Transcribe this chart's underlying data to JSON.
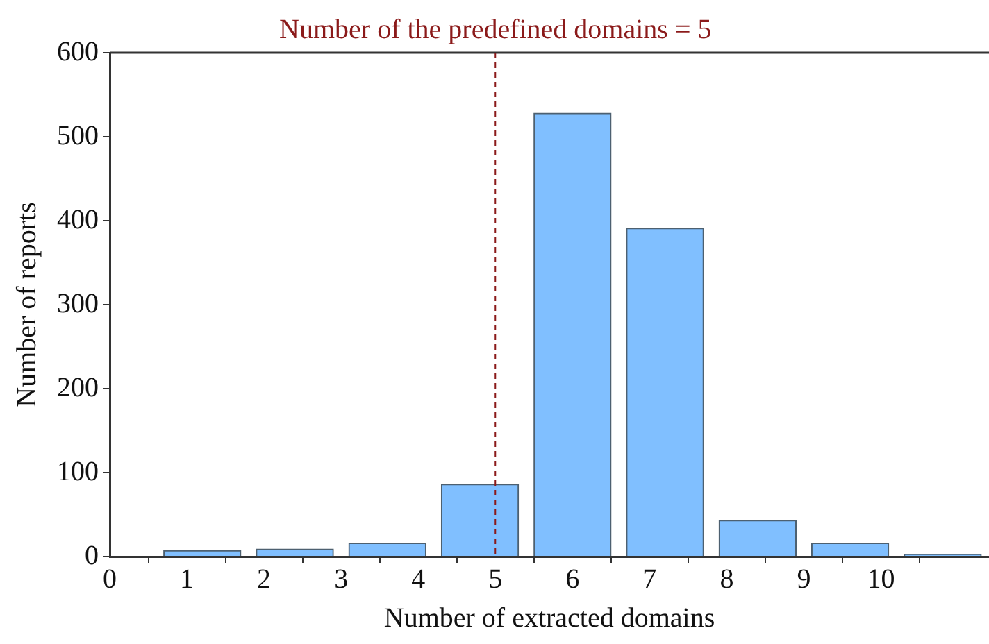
{
  "chart_data": {
    "type": "histogram",
    "xlabel": "Number of extracted domains",
    "ylabel": "Number of reports",
    "bins": [
      0.6,
      1.8,
      3,
      4.2,
      5.4,
      6.6,
      7.8,
      9,
      10.2,
      11.4
    ],
    "values": [
      7,
      9,
      16,
      86,
      528,
      391,
      43,
      16,
      2
    ],
    "color": "#80bfff",
    "xlim": [
      0,
      11.4
    ],
    "xticks": [
      0,
      1,
      2,
      3,
      4,
      5,
      6,
      7,
      8,
      9,
      10
    ],
    "ylim": [
      0,
      600
    ],
    "yticks": [
      0,
      100,
      200,
      300,
      400,
      500,
      600
    ],
    "ref_lines": [
      {
        "axis": "x",
        "value": 5,
        "label": "Number of the predefined domains = 5",
        "color": "#8b1a1a",
        "line_style": "dashed"
      }
    ],
    "grid": false,
    "legend": false
  }
}
